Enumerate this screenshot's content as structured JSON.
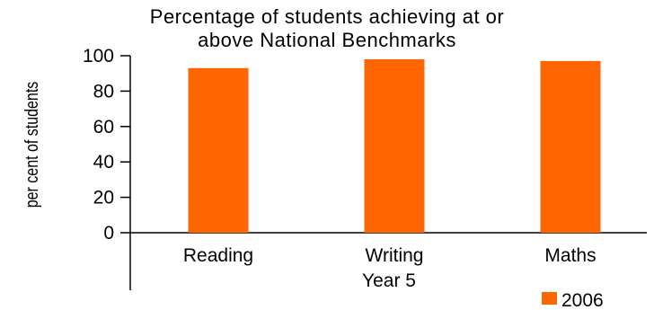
{
  "chart_data": {
    "type": "bar",
    "title_lines": [
      "Percentage of students achieving at or",
      "above National Benchmarks"
    ],
    "xlabel": "Year 5",
    "ylabel": "per cent of students",
    "categories": [
      "Reading",
      "Writing",
      "Maths"
    ],
    "series": [
      {
        "name": "2006",
        "values": [
          93,
          98,
          97
        ]
      }
    ],
    "ylim": [
      0,
      100
    ],
    "yticks": [
      0,
      20,
      40,
      60,
      80,
      100
    ],
    "grid": false,
    "legend_position": "bottom-right",
    "colors": {
      "bar": "#FF6600",
      "axis": "#000000",
      "text": "#000000"
    }
  }
}
